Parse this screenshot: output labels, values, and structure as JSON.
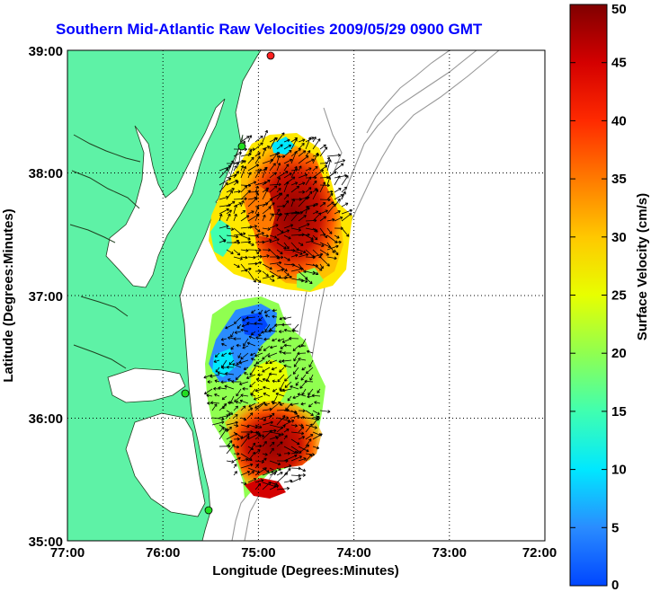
{
  "title": "Southern Mid-Atlantic Raw Velocities 2009/05/29 0900 GMT",
  "x_axis": {
    "label": "Longitude (Degrees:Minutes)",
    "ticks": [
      "77:00",
      "76:00",
      "75:00",
      "74:00",
      "73:00",
      "72:00"
    ]
  },
  "y_axis": {
    "label": "Latitude (Degrees:Minutes)",
    "ticks": [
      "39:00",
      "38:00",
      "37:00",
      "36:00",
      "35:00"
    ]
  },
  "colorbar": {
    "label": "Surface Velocity (cm/s)",
    "ticks": [
      "50",
      "45",
      "40",
      "35",
      "30",
      "25",
      "20",
      "15",
      "10",
      "5",
      "0"
    ],
    "min": 0,
    "max": 50
  },
  "colors": {
    "land": "#5ef2a6",
    "ocean": "#ffffff",
    "title": "#0000ff",
    "grid": "#000000",
    "station_marker": "#22dd22",
    "station_marker_red": "#ff2020"
  },
  "extent": {
    "lon_min": -77,
    "lon_max": -72,
    "lat_min": 35,
    "lat_max": 39
  },
  "chart_data": {
    "type": "heatmap",
    "title": "Southern Mid-Atlantic Raw Velocities 2009/05/29 0900 GMT",
    "xlabel": "Longitude (Degrees:Minutes)",
    "ylabel": "Latitude (Degrees:Minutes)",
    "xlim": [
      -77,
      -72
    ],
    "ylim": [
      35,
      39
    ],
    "grid": true,
    "colorbar_range": [
      0,
      50
    ],
    "colorbar_label": "Surface Velocity (cm/s)",
    "regions": [
      {
        "lon": -74.9,
        "lat": 37.6,
        "speed": 45
      },
      {
        "lon": -75.3,
        "lat": 37.6,
        "speed": 25
      },
      {
        "lon": -75.05,
        "lat": 36.85,
        "speed": 10
      },
      {
        "lon": -75.35,
        "lat": 36.35,
        "speed": 10
      },
      {
        "lon": -74.95,
        "lat": 36.5,
        "speed": 25
      },
      {
        "lon": -74.85,
        "lat": 35.85,
        "speed": 45
      }
    ]
  }
}
